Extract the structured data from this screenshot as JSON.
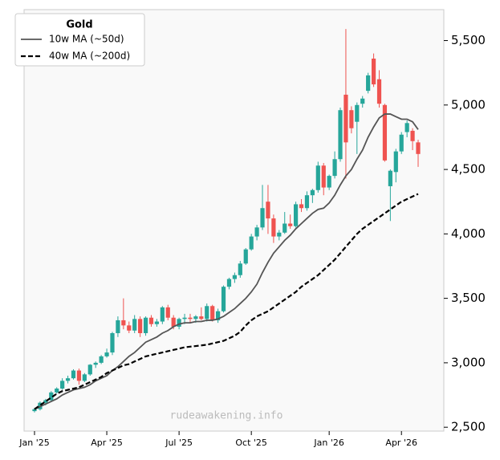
{
  "chart_data": {
    "type": "candlestick",
    "legend_title": "Gold",
    "legend": "upper left",
    "watermark": "rudeawakening.info",
    "up_color": "#26a69a",
    "down_color": "#ef5350",
    "categories": [
      "Jan '25",
      null,
      null,
      null,
      null,
      null,
      null,
      null,
      null,
      null,
      null,
      null,
      null,
      "Apr '25",
      null,
      null,
      null,
      null,
      null,
      null,
      null,
      null,
      null,
      null,
      null,
      null,
      "Jul '25",
      null,
      null,
      null,
      null,
      null,
      null,
      null,
      null,
      null,
      null,
      null,
      null,
      "Oct '25",
      null,
      null,
      null,
      null,
      null,
      null,
      null,
      null,
      null,
      null,
      null,
      null,
      null,
      "Jan '26",
      null,
      null,
      null,
      null,
      null,
      null,
      null,
      null,
      null,
      null,
      null,
      null,
      "Apr '26",
      null,
      null,
      null
    ],
    "open": [
      2625,
      2640,
      2690,
      2710,
      2770,
      2800,
      2860,
      2880,
      2940,
      2860,
      2910,
      2985,
      3000,
      3050,
      3080,
      3230,
      3330,
      3290,
      3250,
      3340,
      3230,
      3350,
      3300,
      3320,
      3430,
      3350,
      3280,
      3340,
      3350,
      3340,
      3360,
      3340,
      3440,
      3330,
      3400,
      3590,
      3650,
      3680,
      3770,
      3880,
      3980,
      4050,
      4250,
      4120,
      3980,
      4010,
      4080,
      4060,
      4230,
      4200,
      4300,
      4340,
      4530,
      4360,
      4450,
      4580,
      5080,
      4960,
      4870,
      5010,
      5110,
      5360,
      5200,
      5000,
      4370,
      4480,
      4640,
      4790,
      4800,
      4710
    ],
    "high": [
      2650,
      2700,
      2720,
      2780,
      2810,
      2880,
      2900,
      2950,
      2955,
      2920,
      2990,
      3010,
      3060,
      3110,
      3240,
      3360,
      3500,
      3320,
      3370,
      3360,
      3360,
      3370,
      3340,
      3440,
      3450,
      3370,
      3350,
      3380,
      3380,
      3370,
      3430,
      3460,
      3450,
      3420,
      3600,
      3660,
      3700,
      3790,
      3890,
      4000,
      4070,
      4380,
      4380,
      4150,
      4030,
      4170,
      4150,
      4250,
      4270,
      4330,
      4350,
      4560,
      4550,
      4460,
      4640,
      4980,
      5590,
      4990,
      5020,
      5070,
      5250,
      5400,
      5270,
      5010,
      4500,
      4660,
      4790,
      4880,
      4820,
      4730
    ],
    "low": [
      2615,
      2630,
      2670,
      2700,
      2760,
      2790,
      2840,
      2870,
      2830,
      2850,
      2900,
      2960,
      2990,
      3040,
      3060,
      3200,
      3260,
      3230,
      3230,
      3200,
      3210,
      3280,
      3280,
      3300,
      3330,
      3260,
      3260,
      3300,
      3310,
      3310,
      3330,
      3320,
      3320,
      3310,
      3390,
      3570,
      3620,
      3660,
      3760,
      3870,
      3950,
      4030,
      4000,
      3930,
      3950,
      4000,
      4040,
      4050,
      4170,
      4180,
      4240,
      4320,
      4300,
      4340,
      4430,
      4560,
      4430,
      4780,
      4620,
      4980,
      5090,
      5140,
      4980,
      4560,
      4100,
      4400,
      4620,
      4750,
      4650,
      4520
    ],
    "close": [
      2640,
      2690,
      2710,
      2770,
      2800,
      2860,
      2880,
      2940,
      2860,
      2910,
      2985,
      3000,
      3050,
      3080,
      3230,
      3330,
      3290,
      3250,
      3340,
      3230,
      3350,
      3300,
      3320,
      3430,
      3350,
      3280,
      3340,
      3350,
      3340,
      3360,
      3340,
      3440,
      3330,
      3400,
      3590,
      3650,
      3680,
      3770,
      3880,
      3980,
      4050,
      4200,
      4120,
      3980,
      4010,
      4080,
      4060,
      4230,
      4200,
      4300,
      4340,
      4530,
      4360,
      4450,
      4580,
      4960,
      4710,
      4820,
      5000,
      5050,
      5230,
      5160,
      5010,
      4570,
      4490,
      4640,
      4770,
      4860,
      4720,
      4620
    ],
    "series": [
      {
        "name": "10w MA (~50d)",
        "color": "#555555",
        "style": "solid",
        "values": [
          2640,
          2660,
          2680,
          2700,
          2720,
          2750,
          2770,
          2790,
          2800,
          2810,
          2830,
          2860,
          2880,
          2900,
          2940,
          2970,
          3010,
          3050,
          3080,
          3120,
          3160,
          3180,
          3200,
          3230,
          3250,
          3280,
          3300,
          3310,
          3310,
          3320,
          3320,
          3330,
          3330,
          3340,
          3360,
          3390,
          3420,
          3460,
          3500,
          3550,
          3610,
          3700,
          3780,
          3850,
          3900,
          3950,
          3990,
          4040,
          4080,
          4120,
          4160,
          4190,
          4200,
          4240,
          4300,
          4380,
          4450,
          4500,
          4580,
          4650,
          4750,
          4830,
          4900,
          4930,
          4930,
          4910,
          4890,
          4890,
          4870,
          4810
        ]
      },
      {
        "name": "40w MA (~200d)",
        "color": "#000000",
        "style": "dashed",
        "values": [
          2640,
          2670,
          2700,
          2730,
          2760,
          2780,
          2790,
          2800,
          2810,
          2830,
          2850,
          2870,
          2890,
          2920,
          2940,
          2960,
          2980,
          2990,
          3010,
          3030,
          3050,
          3060,
          3070,
          3080,
          3090,
          3100,
          3110,
          3120,
          3125,
          3130,
          3135,
          3140,
          3150,
          3160,
          3170,
          3190,
          3210,
          3240,
          3290,
          3330,
          3360,
          3380,
          3400,
          3430,
          3460,
          3490,
          3520,
          3550,
          3590,
          3620,
          3650,
          3680,
          3720,
          3760,
          3800,
          3850,
          3900,
          3950,
          4000,
          4040,
          4070,
          4100,
          4130,
          4160,
          4190,
          4220,
          4250,
          4270,
          4290,
          4310
        ]
      }
    ],
    "ylim": [
      2470,
      5740
    ],
    "yticks": [
      {
        "value": 2500,
        "label": "2,500"
      },
      {
        "value": 3000,
        "label": "3,000"
      },
      {
        "value": 3500,
        "label": "3,500"
      },
      {
        "value": 4000,
        "label": "4,000"
      },
      {
        "value": 4500,
        "label": "4,500"
      },
      {
        "value": 5000,
        "label": "5,000"
      },
      {
        "value": 5500,
        "label": "5,500"
      }
    ]
  }
}
